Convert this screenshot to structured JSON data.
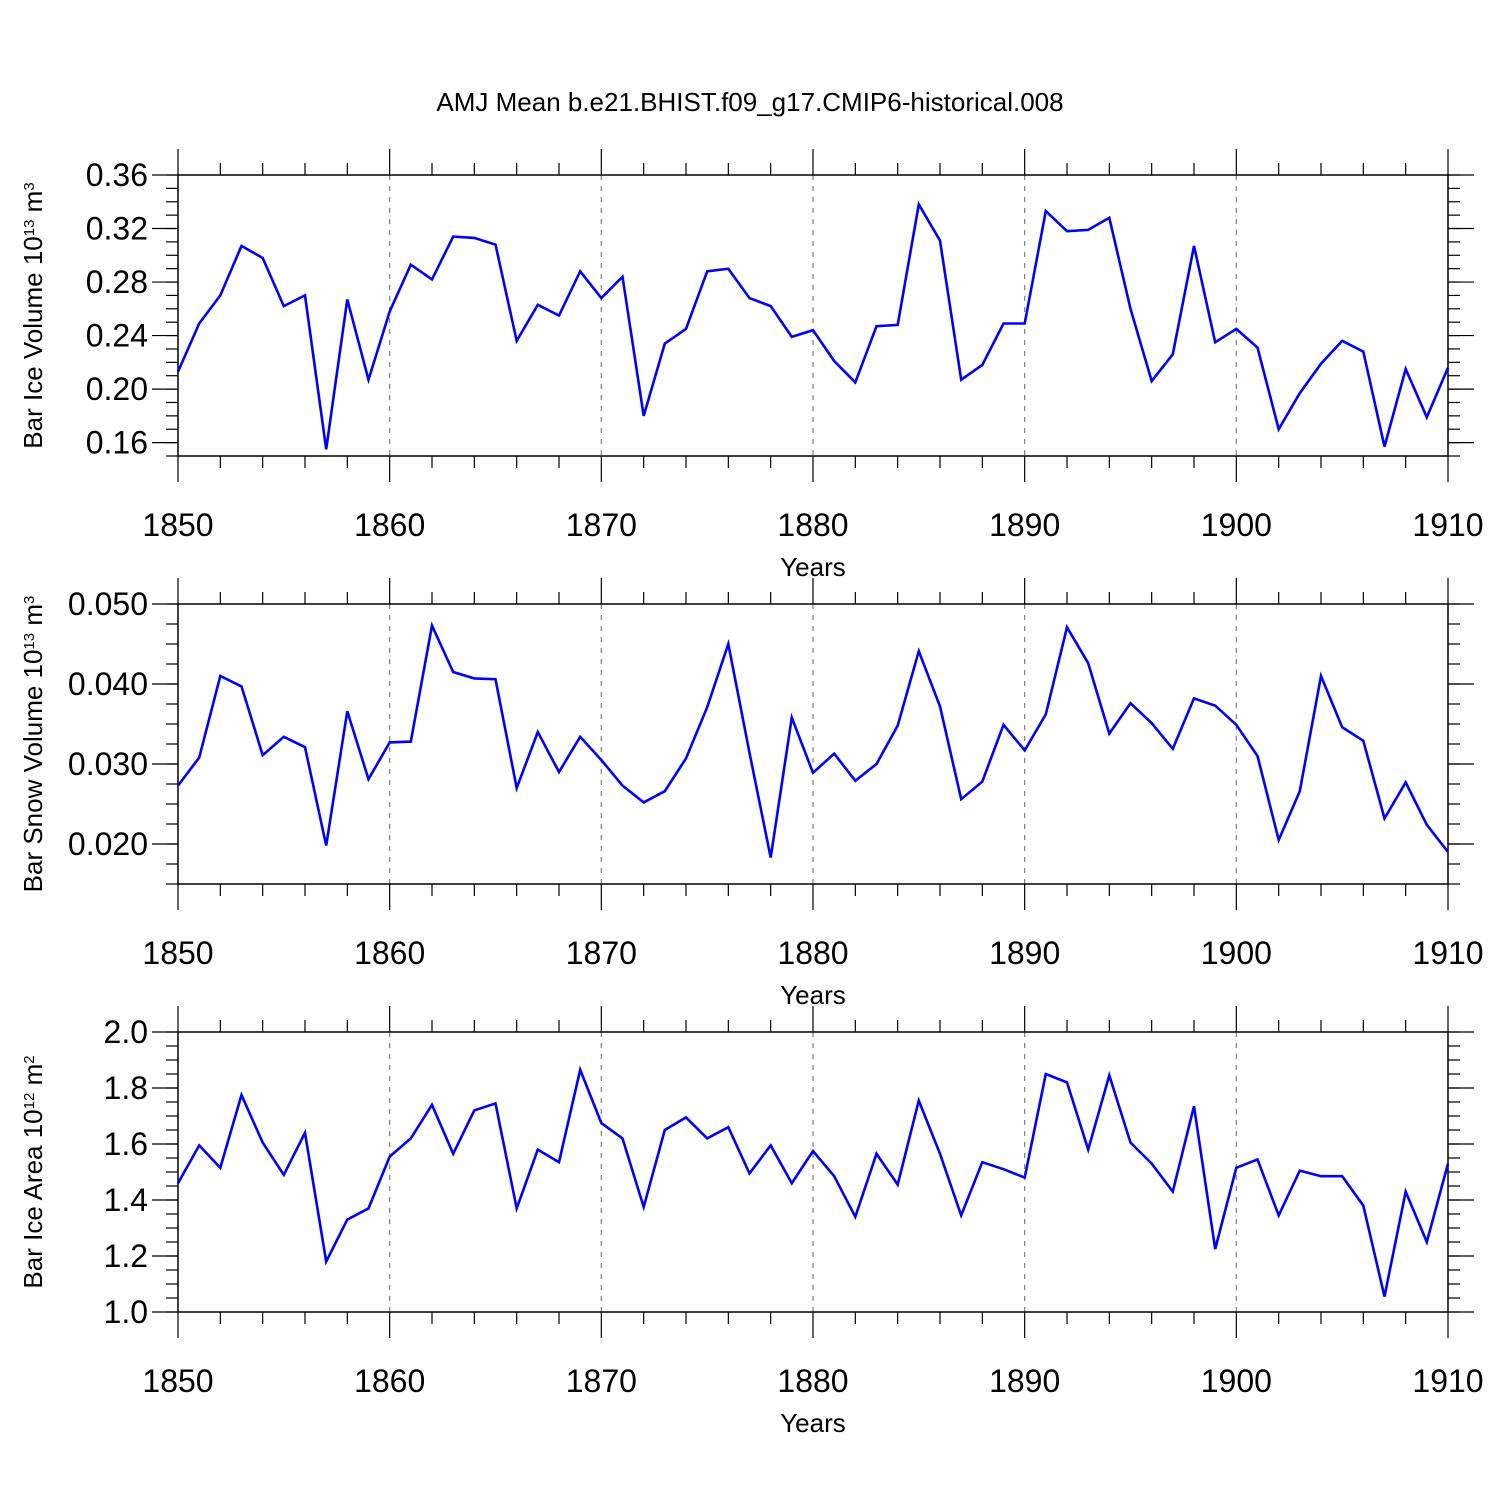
{
  "figure": {
    "title": "AMJ Mean b.e21.BHIST.f09_g17.CMIP6-historical.008",
    "line_color": "#0000ff",
    "grid_color": "#7f7f7f"
  },
  "chart_data": [
    {
      "type": "line",
      "title": "AMJ Mean b.e21.BHIST.f09_g17.CMIP6-historical.008",
      "xlabel": "Years",
      "ylabel_main": "Bar Ice Volume 10",
      "ylabel_exp": "13",
      "ylabel_unit": " m",
      "ylabel_unit_exp": "3",
      "xlim": [
        1850,
        1910
      ],
      "ylim": [
        0.15,
        0.36
      ],
      "yticks": [
        0.16,
        0.2,
        0.24,
        0.28,
        0.32,
        0.36
      ],
      "ytick_labels": [
        "0.16",
        "0.20",
        "0.24",
        "0.28",
        "0.32",
        "0.36"
      ],
      "yminor_step": 0.01,
      "xticks": [
        1850,
        1860,
        1870,
        1880,
        1890,
        1900,
        1910
      ],
      "xtick_labels": [
        "1850",
        "1860",
        "1870",
        "1880",
        "1890",
        "1900",
        "1910"
      ],
      "grid_x": [
        1860,
        1870,
        1880,
        1890,
        1900
      ],
      "x_start": 1850,
      "values": [
        0.213,
        0.249,
        0.27,
        0.307,
        0.298,
        0.262,
        0.27,
        0.155,
        0.267,
        0.207,
        0.258,
        0.293,
        0.282,
        0.314,
        0.313,
        0.308,
        0.236,
        0.263,
        0.255,
        0.288,
        0.268,
        0.284,
        0.18,
        0.234,
        0.245,
        0.288,
        0.29,
        0.268,
        0.262,
        0.239,
        0.244,
        0.221,
        0.205,
        0.247,
        0.248,
        0.338,
        0.311,
        0.207,
        0.218,
        0.249,
        0.249,
        0.333,
        0.318,
        0.319,
        0.328,
        0.26,
        0.206,
        0.226,
        0.307,
        0.235,
        0.245,
        0.231,
        0.17,
        0.197,
        0.219,
        0.236,
        0.228,
        0.157,
        0.215,
        0.179,
        0.216
      ]
    },
    {
      "type": "line",
      "xlabel": "Years",
      "ylabel_main": "Bar Snow Volume 10",
      "ylabel_exp": "13",
      "ylabel_unit": " m",
      "ylabel_unit_exp": "3",
      "xlim": [
        1850,
        1910
      ],
      "ylim": [
        0.015,
        0.05
      ],
      "yticks": [
        0.02,
        0.03,
        0.04,
        0.05
      ],
      "ytick_labels": [
        "0.020",
        "0.030",
        "0.040",
        "0.050"
      ],
      "yminor_step": 0.0025,
      "xticks": [
        1850,
        1860,
        1870,
        1880,
        1890,
        1900,
        1910
      ],
      "xtick_labels": [
        "1850",
        "1860",
        "1870",
        "1880",
        "1890",
        "1900",
        "1910"
      ],
      "grid_x": [
        1860,
        1870,
        1880,
        1890,
        1900
      ],
      "x_start": 1850,
      "values": [
        0.0273,
        0.0308,
        0.041,
        0.0397,
        0.0311,
        0.0334,
        0.0321,
        0.0198,
        0.0366,
        0.0281,
        0.0327,
        0.0328,
        0.0473,
        0.0415,
        0.0407,
        0.0406,
        0.027,
        0.034,
        0.029,
        0.0334,
        0.0305,
        0.0273,
        0.0252,
        0.0266,
        0.0307,
        0.0371,
        0.045,
        0.0314,
        0.0183,
        0.0358,
        0.0289,
        0.0313,
        0.0279,
        0.03,
        0.0348,
        0.0441,
        0.0372,
        0.0256,
        0.0278,
        0.0349,
        0.0317,
        0.0362,
        0.0471,
        0.0426,
        0.0338,
        0.0376,
        0.0351,
        0.0319,
        0.0382,
        0.0373,
        0.0349,
        0.031,
        0.0205,
        0.0266,
        0.041,
        0.0346,
        0.0329,
        0.0232,
        0.0277,
        0.0224,
        0.019
      ]
    },
    {
      "type": "line",
      "xlabel": "Years",
      "ylabel_main": "Bar Ice Area 10",
      "ylabel_exp": "12",
      "ylabel_unit": " m",
      "ylabel_unit_exp": "2",
      "xlim": [
        1850,
        1910
      ],
      "ylim": [
        1.0,
        2.0
      ],
      "yticks": [
        1.0,
        1.2,
        1.4,
        1.6,
        1.8,
        2.0
      ],
      "ytick_labels": [
        "1.0",
        "1.2",
        "1.4",
        "1.6",
        "1.8",
        "2.0"
      ],
      "yminor_step": 0.05,
      "xticks": [
        1850,
        1860,
        1870,
        1880,
        1890,
        1900,
        1910
      ],
      "xtick_labels": [
        "1850",
        "1860",
        "1870",
        "1880",
        "1890",
        "1900",
        "1910"
      ],
      "grid_x": [
        1860,
        1870,
        1880,
        1890,
        1900
      ],
      "x_start": 1850,
      "values": [
        1.46,
        1.595,
        1.515,
        1.775,
        1.605,
        1.49,
        1.64,
        1.18,
        1.33,
        1.37,
        1.555,
        1.62,
        1.74,
        1.565,
        1.72,
        1.745,
        1.37,
        1.58,
        1.535,
        1.865,
        1.675,
        1.62,
        1.375,
        1.65,
        1.695,
        1.62,
        1.66,
        1.495,
        1.595,
        1.46,
        1.575,
        1.485,
        1.34,
        1.565,
        1.455,
        1.755,
        1.565,
        1.345,
        1.535,
        1.51,
        1.48,
        1.85,
        1.82,
        1.58,
        1.845,
        1.605,
        1.53,
        1.43,
        1.735,
        1.225,
        1.515,
        1.545,
        1.345,
        1.505,
        1.485,
        1.485,
        1.38,
        1.055,
        1.43,
        1.25,
        1.53
      ]
    }
  ]
}
